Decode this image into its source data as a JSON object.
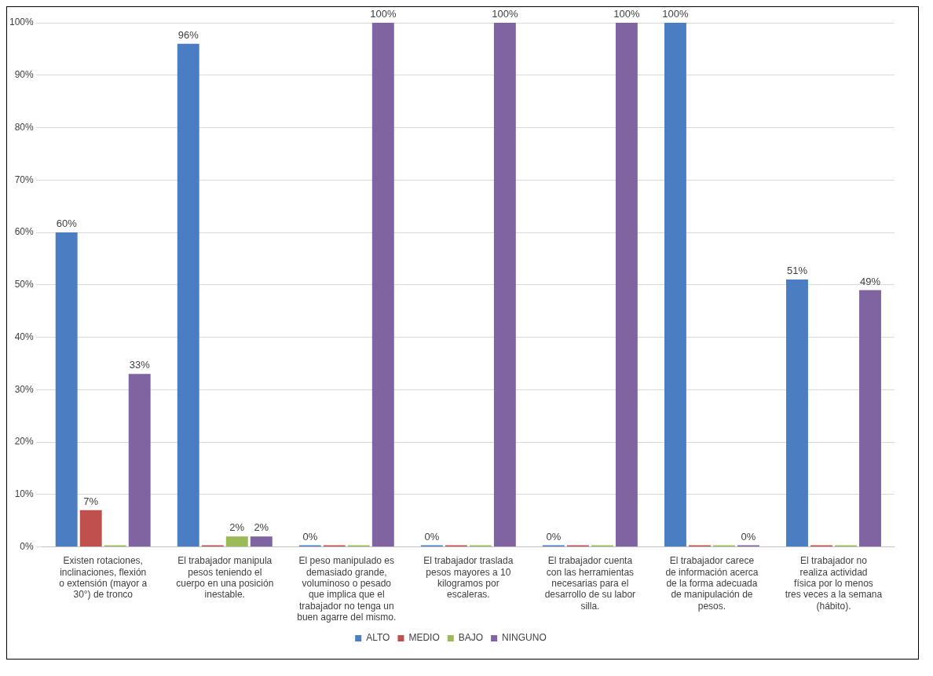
{
  "chart_data": {
    "type": "bar",
    "categories": [
      "Existen rotaciones, inclinaciones, flexión o extensión (mayor a 30°) de tronco",
      "El trabajador manipula pesos teniendo el cuerpo en una posición inestable.",
      "El peso manipulado es demasiado grande, voluminoso o pesado que implica que el trabajador no tenga un buen agarre del mismo.",
      "El trabajador traslada pesos mayores a 10 kilogramos por escaleras.",
      "El trabajador cuenta con las herramientas necesarias para el desarrollo de su labor silla.",
      "El trabajador carece de información acerca de la forma adecuada de manipulación de pesos.",
      "El trabajador no realiza actividad física por lo menos tres veces a la semana (hábito)."
    ],
    "series": [
      {
        "name": "ALTO",
        "color": "#4a7dc1",
        "values": [
          60,
          96,
          0,
          0,
          0,
          100,
          51
        ],
        "value_labels": [
          "60%",
          "96%",
          "0%",
          "0%",
          "0%",
          "100%",
          "51%"
        ]
      },
      {
        "name": "MEDIO",
        "color": "#c0504d",
        "values": [
          7,
          0,
          0,
          0,
          0,
          0,
          0
        ],
        "value_labels": [
          "7%",
          null,
          null,
          null,
          null,
          null,
          null
        ]
      },
      {
        "name": "BAJO",
        "color": "#9bbb59",
        "values": [
          0,
          2,
          0,
          0,
          0,
          0,
          0
        ],
        "value_labels": [
          null,
          "2%",
          null,
          null,
          null,
          null,
          null
        ]
      },
      {
        "name": "NINGUNO",
        "color": "#8064a2",
        "values": [
          33,
          2,
          100,
          100,
          100,
          0,
          49
        ],
        "value_labels": [
          "33%",
          "2%",
          "100%",
          "100%",
          "100%",
          "0%",
          "49%"
        ]
      }
    ],
    "ylim": [
      0,
      100
    ],
    "yticks": [
      {
        "value": 0,
        "label": "0%"
      },
      {
        "value": 10,
        "label": "10%"
      },
      {
        "value": 20,
        "label": "20%"
      },
      {
        "value": 30,
        "label": "30%"
      },
      {
        "value": 40,
        "label": "40%"
      },
      {
        "value": 50,
        "label": "50%"
      },
      {
        "value": 60,
        "label": "60%"
      },
      {
        "value": 70,
        "label": "70%"
      },
      {
        "value": 80,
        "label": "80%"
      },
      {
        "value": 90,
        "label": "90%"
      },
      {
        "value": 100,
        "label": "100%"
      }
    ],
    "grid": "y",
    "legend": "bottom"
  }
}
